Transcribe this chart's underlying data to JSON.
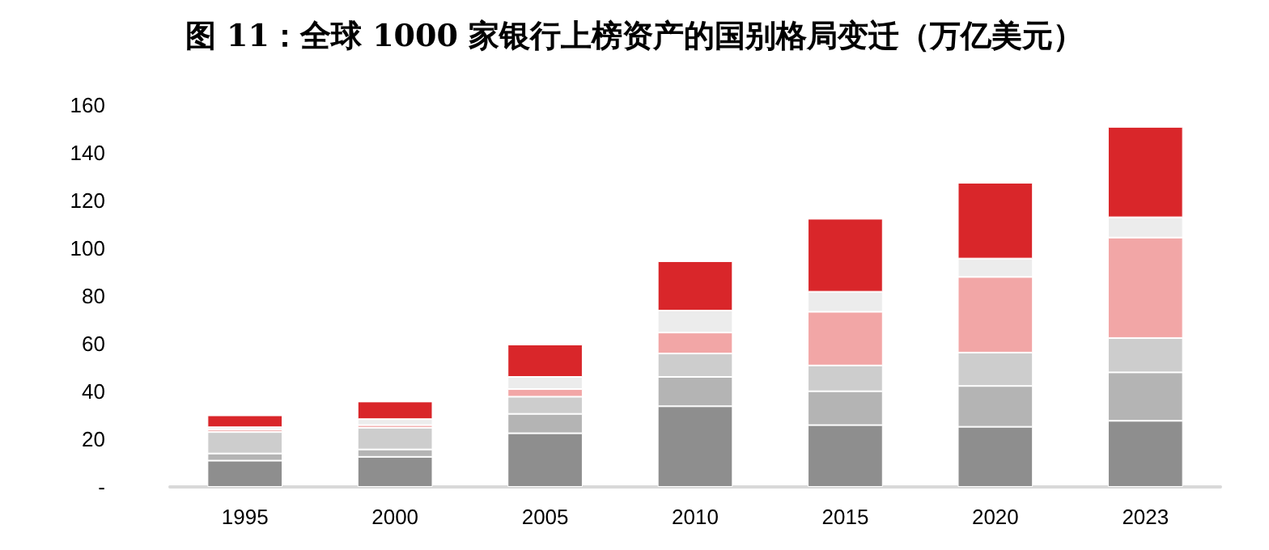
{
  "chart_data": {
    "type": "bar",
    "title": "图 11：全球 1000 家银行上榜资产的国别格局变迁（万亿美元）",
    "stacked": true,
    "categories": [
      "1995",
      "2000",
      "2005",
      "2010",
      "2015",
      "2020",
      "2023"
    ],
    "ylim": [
      0,
      160
    ],
    "yticks": [
      {
        "value": 0,
        "label": "-"
      },
      20,
      40,
      60,
      80,
      100,
      120,
      140,
      160
    ],
    "series": [
      {
        "color": "#8e8e8e",
        "values": [
          11,
          12.6,
          22.5,
          33.8,
          25.9,
          25.2,
          27.7
        ]
      },
      {
        "color": "#b4b4b4",
        "values": [
          3,
          3.1,
          8.1,
          12.3,
          14.2,
          17.1,
          20.3
        ]
      },
      {
        "color": "#cdcdcd",
        "values": [
          9,
          9.1,
          7.2,
          9.8,
          10.8,
          14,
          14.4
        ]
      },
      {
        "color": "#f2a6a6",
        "values": [
          1,
          1.1,
          3.2,
          8.8,
          22.5,
          31.7,
          42.1
        ]
      },
      {
        "color": "#ececec",
        "values": [
          1,
          2.5,
          5.1,
          9.2,
          8.4,
          7.7,
          8.5
        ]
      },
      {
        "color": "#d9262a",
        "values": [
          5,
          7.4,
          13.6,
          20.7,
          30.6,
          31.8,
          37.9
        ]
      }
    ]
  }
}
